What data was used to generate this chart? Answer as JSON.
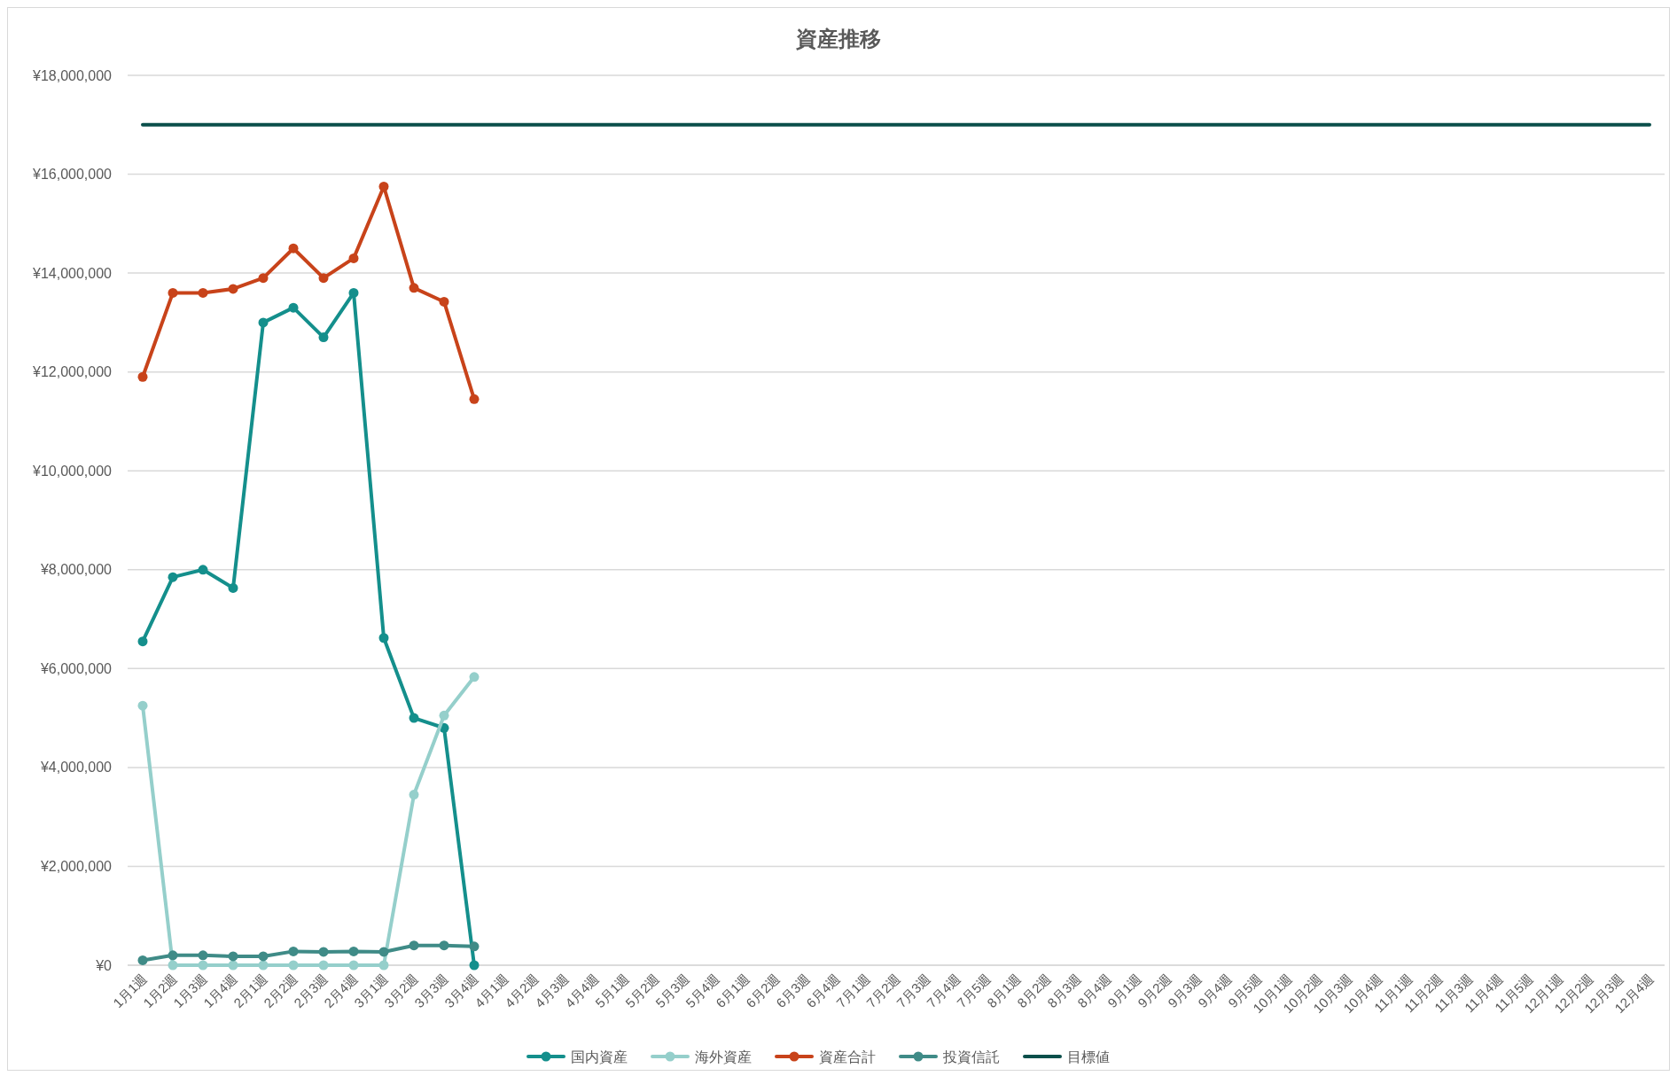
{
  "chart_data": {
    "type": "line",
    "title": "資産推移",
    "categories": [
      "1月1週",
      "1月2週",
      "1月3週",
      "1月4週",
      "2月1週",
      "2月2週",
      "2月3週",
      "2月4週",
      "3月1週",
      "3月2週",
      "3月3週",
      "3月4週",
      "4月1週",
      "4月2週",
      "4月3週",
      "4月4週",
      "5月1週",
      "5月2週",
      "5月3週",
      "5月4週",
      "6月1週",
      "6月2週",
      "6月3週",
      "6月4週",
      "7月1週",
      "7月2週",
      "7月3週",
      "7月4週",
      "7月5週",
      "8月1週",
      "8月2週",
      "8月3週",
      "8月4週",
      "9月1週",
      "9月2週",
      "9月3週",
      "9月4週",
      "9月5週",
      "10月1週",
      "10月2週",
      "10月3週",
      "10月4週",
      "11月1週",
      "11月2週",
      "11月3週",
      "11月4週",
      "11月5週",
      "12月1週",
      "12月2週",
      "12月3週",
      "12月4週"
    ],
    "series": [
      {
        "name": "国内資産",
        "color": "#148f8c",
        "marker": "circle",
        "values": [
          6550000,
          7850000,
          8000000,
          7630000,
          13000000,
          13300000,
          12700000,
          13600000,
          6620000,
          5000000,
          4800000,
          0,
          null,
          null,
          null,
          null,
          null,
          null,
          null,
          null,
          null,
          null,
          null,
          null,
          null,
          null,
          null,
          null,
          null,
          null,
          null,
          null,
          null,
          null,
          null,
          null,
          null,
          null,
          null,
          null,
          null,
          null,
          null,
          null,
          null,
          null,
          null,
          null,
          null,
          null,
          null
        ]
      },
      {
        "name": "海外資産",
        "color": "#95cfcb",
        "marker": "circle",
        "values": [
          5250000,
          0,
          0,
          0,
          0,
          0,
          0,
          0,
          0,
          3450000,
          5050000,
          5830000,
          null,
          null,
          null,
          null,
          null,
          null,
          null,
          null,
          null,
          null,
          null,
          null,
          null,
          null,
          null,
          null,
          null,
          null,
          null,
          null,
          null,
          null,
          null,
          null,
          null,
          null,
          null,
          null,
          null,
          null,
          null,
          null,
          null,
          null,
          null,
          null,
          null,
          null,
          null
        ]
      },
      {
        "name": "資産合計",
        "color": "#c8431a",
        "marker": "circle",
        "values": [
          11900000,
          13600000,
          13600000,
          13680000,
          13900000,
          14500000,
          13900000,
          14300000,
          15750000,
          13700000,
          13420000,
          11450000,
          null,
          null,
          null,
          null,
          null,
          null,
          null,
          null,
          null,
          null,
          null,
          null,
          null,
          null,
          null,
          null,
          null,
          null,
          null,
          null,
          null,
          null,
          null,
          null,
          null,
          null,
          null,
          null,
          null,
          null,
          null,
          null,
          null,
          null,
          null,
          null,
          null,
          null,
          null
        ]
      },
      {
        "name": "投資信託",
        "color": "#3f8b87",
        "marker": "circle",
        "values": [
          100000,
          200000,
          200000,
          180000,
          180000,
          280000,
          270000,
          280000,
          270000,
          400000,
          400000,
          380000,
          null,
          null,
          null,
          null,
          null,
          null,
          null,
          null,
          null,
          null,
          null,
          null,
          null,
          null,
          null,
          null,
          null,
          null,
          null,
          null,
          null,
          null,
          null,
          null,
          null,
          null,
          null,
          null,
          null,
          null,
          null,
          null,
          null,
          null,
          null,
          null,
          null,
          null,
          null
        ]
      },
      {
        "name": "目標値",
        "color": "#0b4f4b",
        "marker": "none",
        "values": [
          17000000,
          17000000,
          17000000,
          17000000,
          17000000,
          17000000,
          17000000,
          17000000,
          17000000,
          17000000,
          17000000,
          17000000,
          17000000,
          17000000,
          17000000,
          17000000,
          17000000,
          17000000,
          17000000,
          17000000,
          17000000,
          17000000,
          17000000,
          17000000,
          17000000,
          17000000,
          17000000,
          17000000,
          17000000,
          17000000,
          17000000,
          17000000,
          17000000,
          17000000,
          17000000,
          17000000,
          17000000,
          17000000,
          17000000,
          17000000,
          17000000,
          17000000,
          17000000,
          17000000,
          17000000,
          17000000,
          17000000,
          17000000,
          17000000,
          17000000,
          17000000
        ]
      }
    ],
    "ylim": [
      0,
      18000000
    ],
    "yticks": [
      {
        "value": 0,
        "label": "¥0"
      },
      {
        "value": 2000000,
        "label": "¥2,000,000"
      },
      {
        "value": 4000000,
        "label": "¥4,000,000"
      },
      {
        "value": 6000000,
        "label": "¥6,000,000"
      },
      {
        "value": 8000000,
        "label": "¥8,000,000"
      },
      {
        "value": 10000000,
        "label": "¥10,000,000"
      },
      {
        "value": 12000000,
        "label": "¥12,000,000"
      },
      {
        "value": 14000000,
        "label": "¥14,000,000"
      },
      {
        "value": 16000000,
        "label": "¥16,000,000"
      },
      {
        "value": 18000000,
        "label": "¥18,000,000"
      }
    ],
    "grid": "y",
    "legend": "bottom"
  }
}
